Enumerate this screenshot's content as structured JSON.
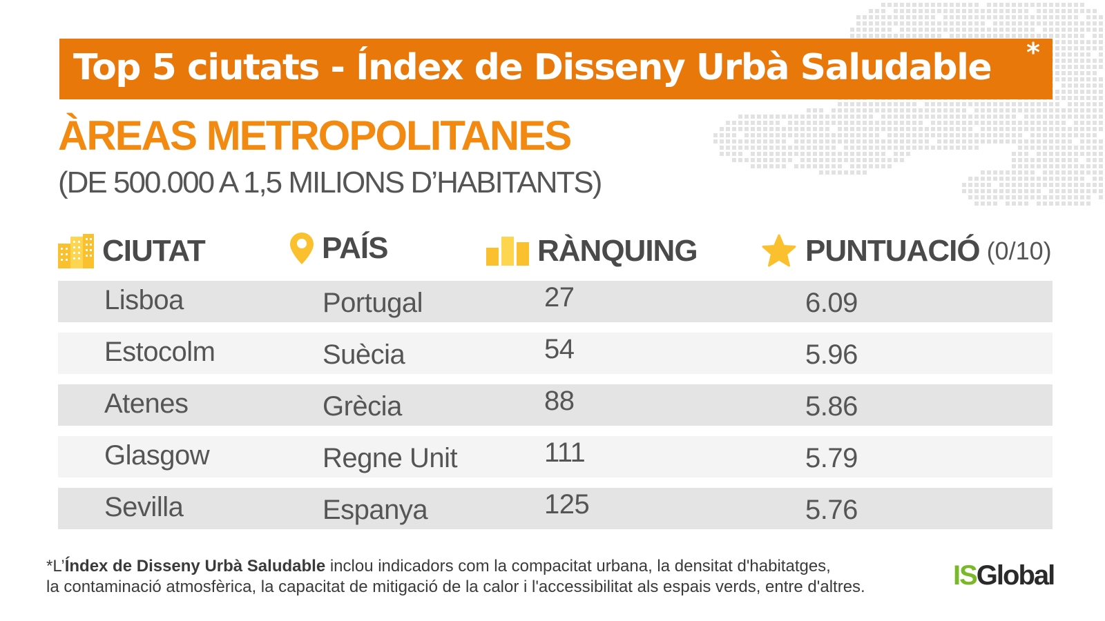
{
  "title": {
    "text": "Top 5 ciutats - Índex de Disseny Urbà Saludable",
    "asterisk": "*"
  },
  "subtitle": "ÀREAS METROPOLITANES",
  "subtitle_range": "(DE 500.000 A 1,5 MILIONS D’HABITANTS)",
  "columns": {
    "city": "CIUTAT",
    "country": "PAÍS",
    "rank": "RÀNQUING",
    "score": "PUNTUACIÓ",
    "score_scale": "(0/10)"
  },
  "icons": {
    "city": "buildings-icon",
    "country": "location-pin-icon",
    "rank": "bar-chart-icon",
    "score": "star-icon",
    "accent_color": "#fbc02d",
    "banner_color": "#e8780a",
    "subtitle_color": "#f28a12"
  },
  "rows": [
    {
      "city": "Lisboa",
      "country": "Portugal",
      "rank": "27",
      "score": "6.09"
    },
    {
      "city": "Estocolm",
      "country": "Suècia",
      "rank": "54",
      "score": "5.96"
    },
    {
      "city": "Atenes",
      "country": "Grècia",
      "rank": "88",
      "score": "5.86"
    },
    {
      "city": "Glasgow",
      "country": "Regne Unit",
      "rank": "111",
      "score": "5.79"
    },
    {
      "city": "Sevilla",
      "country": "Espanya",
      "rank": "125",
      "score": "5.76"
    }
  ],
  "footnote": {
    "prefix": "*L’",
    "bold": "Índex de Disseny Urbà Saludable",
    "rest_line1": " inclou indicadors com la compacitat urbana, la densitat d'habitatges,",
    "line2": "la contaminació atmosfèrica, la capacitat de mitigació de la calor i l'accessibilitat als espais verds, entre d'altres."
  },
  "logo": {
    "part1": "IS",
    "part2": "Global",
    "part1_color": "#7ab829"
  }
}
